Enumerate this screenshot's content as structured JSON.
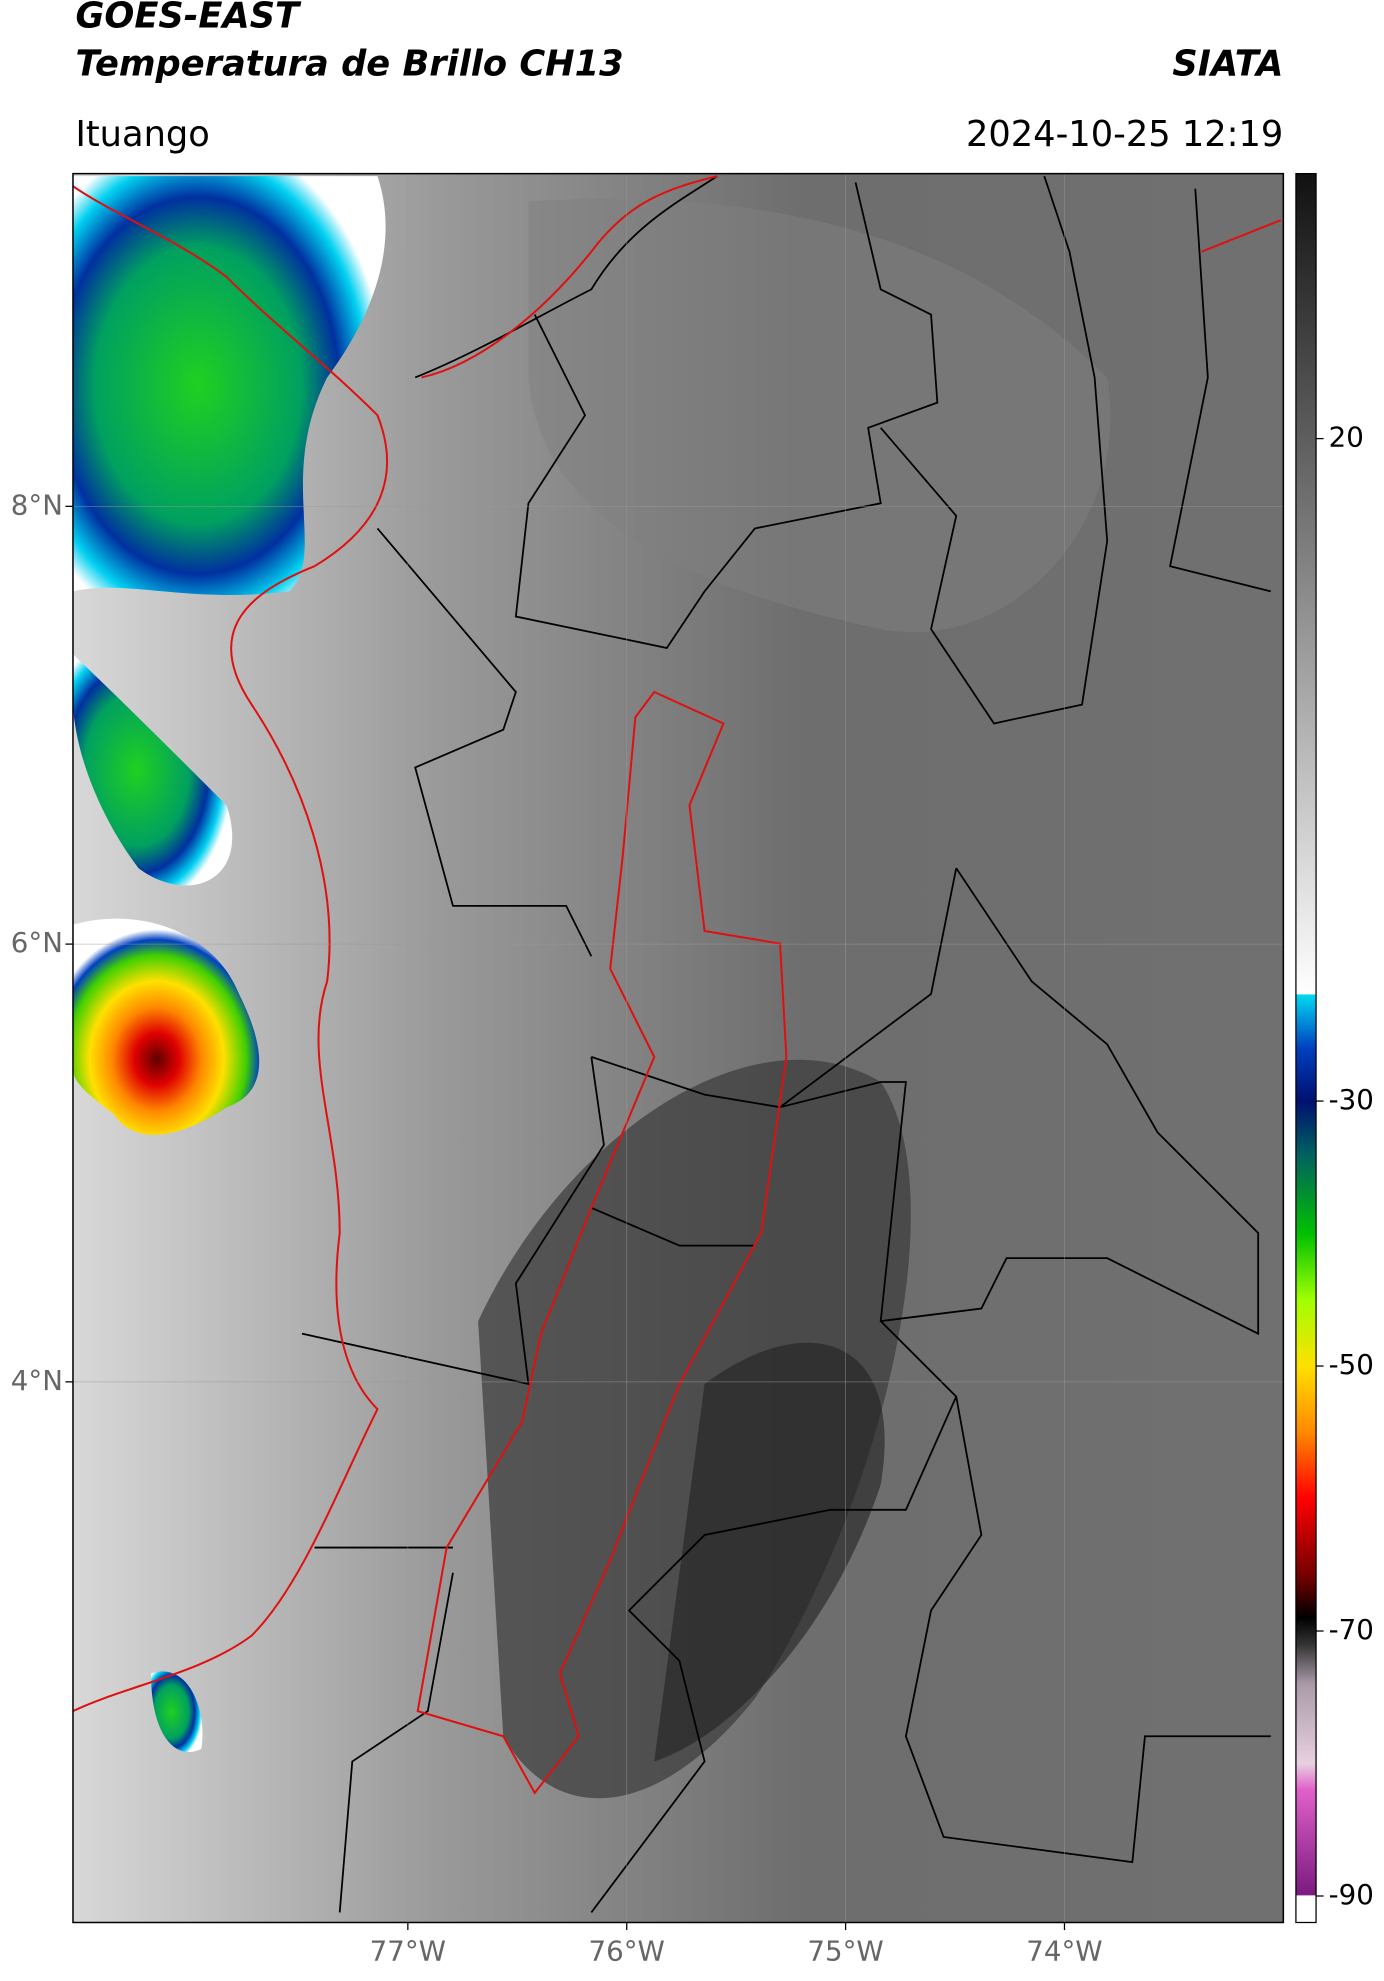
{
  "chart_data": {
    "type": "map",
    "title": "GOES-EAST",
    "subtitle": "Temperatura de Brillo CH13",
    "source": "SIATA",
    "location": "Ituango",
    "timestamp": "2024-10-25 12:19",
    "xlim": [
      -78.53,
      -73.0
    ],
    "ylim": [
      1.53,
      9.52
    ],
    "xticks": [
      {
        "value": -77,
        "label": "77°W"
      },
      {
        "value": -76,
        "label": "76°W"
      },
      {
        "value": -75,
        "label": "75°W"
      },
      {
        "value": -74,
        "label": "74°W"
      }
    ],
    "yticks": [
      {
        "value": 8,
        "label": "8°N"
      },
      {
        "value": 6,
        "label": "6°N"
      },
      {
        "value": 4,
        "label": "4°N"
      }
    ],
    "grid": true,
    "colorbar": {
      "lim": [
        -92,
        40
      ],
      "ticks": [
        20,
        -30,
        -50,
        -70,
        -90
      ],
      "stops": [
        [
          -92,
          "#ffffff"
        ],
        [
          -90,
          "#ffffff"
        ],
        [
          -89.9,
          "#7a1a80"
        ],
        [
          -82,
          "#e060c8"
        ],
        [
          -80,
          "#e8d0e0"
        ],
        [
          -74,
          "#aa9aa8"
        ],
        [
          -71,
          "#333333"
        ],
        [
          -69,
          "#000000"
        ],
        [
          -66,
          "#700000"
        ],
        [
          -60,
          "#ff0000"
        ],
        [
          -55,
          "#ff8800"
        ],
        [
          -50,
          "#ffe000"
        ],
        [
          -45,
          "#a0ff00"
        ],
        [
          -40,
          "#00c000"
        ],
        [
          -34,
          "#006060"
        ],
        [
          -30,
          "#001070"
        ],
        [
          -26,
          "#0040c0"
        ],
        [
          -22,
          "#00d8f0"
        ],
        [
          -21.9,
          "#ffffff"
        ],
        [
          40,
          "#111111"
        ]
      ]
    }
  }
}
